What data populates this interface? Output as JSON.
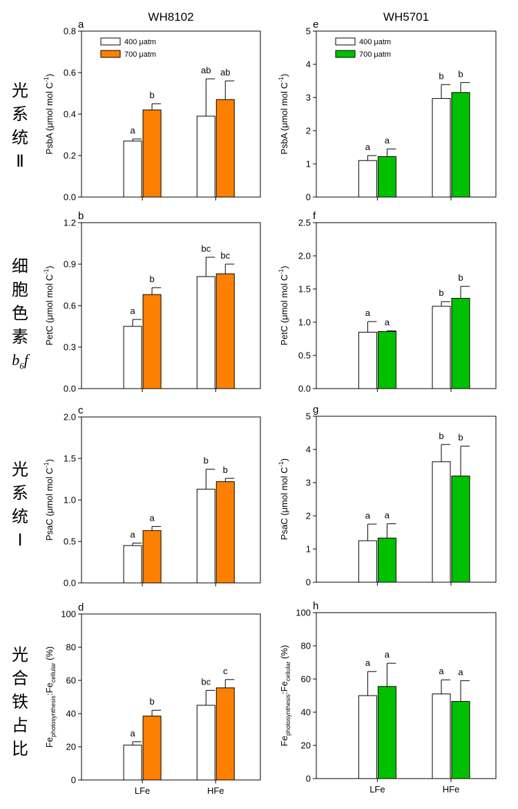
{
  "figure": {
    "column_titles": [
      "WH8102",
      "WH5701"
    ],
    "row_labels": [
      [
        "光",
        "系",
        "统",
        "Ⅱ"
      ],
      [
        "细",
        "胞",
        "色",
        "素",
        "b6f"
      ],
      [
        "光",
        "系",
        "统",
        "Ⅰ"
      ],
      [
        "光",
        "合",
        "铁",
        "占",
        "比"
      ]
    ],
    "row_label_b6f": {
      "base": "b",
      "sub": "6",
      "tail": "f"
    },
    "colors": {
      "white_bar": "#ffffff",
      "orange": "#ff8000",
      "green": "#00c000",
      "axis": "#000000"
    }
  },
  "chart_data": [
    {
      "panel": "a",
      "type": "bar",
      "column_title": "WH8102",
      "ylabel": {
        "base": "PsbA (μmol mol C",
        "sup": "-1",
        "tail": ")"
      },
      "ylim": [
        0,
        0.8
      ],
      "yticks": [
        "0.0",
        "0.2",
        "0.4",
        "0.6",
        "0.8"
      ],
      "categories": [
        "LFe",
        "HFe"
      ],
      "show_xlabels": false,
      "legend": {
        "entries": [
          "400 μatm",
          "700 μatm"
        ],
        "position": "top-left"
      },
      "series": [
        {
          "name": "400 μatm",
          "color": "#ffffff",
          "values": [
            0.27,
            0.39
          ],
          "errors": [
            0.01,
            0.18
          ],
          "letters": [
            "a",
            "ab"
          ]
        },
        {
          "name": "700 μatm",
          "color": "#ff8000",
          "values": [
            0.42,
            0.47
          ],
          "errors": [
            0.03,
            0.09
          ],
          "letters": [
            "b",
            "ab"
          ]
        }
      ]
    },
    {
      "panel": "e",
      "type": "bar",
      "column_title": "WH5701",
      "ylabel": {
        "base": "PsbA (μmol mol C",
        "sup": "-1",
        "tail": ")"
      },
      "ylim": [
        0,
        5
      ],
      "yticks": [
        "0",
        "1",
        "2",
        "3",
        "4",
        "5"
      ],
      "categories": [
        "LFe",
        "HFe"
      ],
      "show_xlabels": false,
      "legend": {
        "entries": [
          "400 μatm",
          "700 μatm"
        ],
        "position": "top-left"
      },
      "series": [
        {
          "name": "400 μatm",
          "color": "#ffffff",
          "values": [
            1.1,
            2.97
          ],
          "errors": [
            0.15,
            0.42
          ],
          "letters": [
            "a",
            "b"
          ]
        },
        {
          "name": "700 μatm",
          "color": "#00c000",
          "values": [
            1.22,
            3.15
          ],
          "errors": [
            0.23,
            0.3
          ],
          "letters": [
            "a",
            "b"
          ]
        }
      ]
    },
    {
      "panel": "b",
      "type": "bar",
      "ylabel": {
        "base": "PetC (μmol mol C",
        "sup": "-1",
        "tail": ")"
      },
      "ylim": [
        0,
        1.2
      ],
      "yticks": [
        "0.0",
        "0.3",
        "0.6",
        "0.9",
        "1.2"
      ],
      "categories": [
        "LFe",
        "HFe"
      ],
      "show_xlabels": false,
      "series": [
        {
          "name": "400 μatm",
          "color": "#ffffff",
          "values": [
            0.45,
            0.81
          ],
          "errors": [
            0.05,
            0.14
          ],
          "letters": [
            "a",
            "bc"
          ]
        },
        {
          "name": "700 μatm",
          "color": "#ff8000",
          "values": [
            0.68,
            0.83
          ],
          "errors": [
            0.05,
            0.07
          ],
          "letters": [
            "b",
            "bc"
          ]
        }
      ]
    },
    {
      "panel": "f",
      "type": "bar",
      "ylabel": {
        "base": "PetC (μmol mol C",
        "sup": "-1",
        "tail": ")"
      },
      "ylim": [
        0,
        2.5
      ],
      "yticks": [
        "0.0",
        "0.5",
        "1.0",
        "1.5",
        "2.0",
        "2.5"
      ],
      "categories": [
        "LFe",
        "HFe"
      ],
      "show_xlabels": false,
      "series": [
        {
          "name": "400 μatm",
          "color": "#ffffff",
          "values": [
            0.85,
            1.24
          ],
          "errors": [
            0.16,
            0.07
          ],
          "letters": [
            "a",
            "b"
          ]
        },
        {
          "name": "700 μatm",
          "color": "#00c000",
          "values": [
            0.86,
            1.36
          ],
          "errors": [
            0.01,
            0.18
          ],
          "letters": [
            "a",
            "b"
          ]
        }
      ]
    },
    {
      "panel": "c",
      "type": "bar",
      "ylabel": {
        "base": "PsaC (μmol mol C",
        "sup": "-1",
        "tail": ")"
      },
      "ylim": [
        0,
        2.0
      ],
      "yticks": [
        "0.0",
        "0.5",
        "1.0",
        "1.5",
        "2.0"
      ],
      "categories": [
        "LFe",
        "HFe"
      ],
      "show_xlabels": false,
      "series": [
        {
          "name": "400 μatm",
          "color": "#ffffff",
          "values": [
            0.45,
            1.13
          ],
          "errors": [
            0.03,
            0.24
          ],
          "letters": [
            "a",
            "b"
          ]
        },
        {
          "name": "700 μatm",
          "color": "#ff8000",
          "values": [
            0.63,
            1.22
          ],
          "errors": [
            0.05,
            0.04
          ],
          "letters": [
            "a",
            "b"
          ]
        }
      ]
    },
    {
      "panel": "g",
      "type": "bar",
      "ylabel": {
        "base": "PsaC (μmol mol C",
        "sup": "-1",
        "tail": ")"
      },
      "ylim": [
        0,
        5
      ],
      "yticks": [
        "0",
        "1",
        "2",
        "3",
        "4",
        "5"
      ],
      "categories": [
        "LFe",
        "HFe"
      ],
      "show_xlabels": false,
      "series": [
        {
          "name": "400 μatm",
          "color": "#ffffff",
          "values": [
            1.25,
            3.63
          ],
          "errors": [
            0.5,
            0.52
          ],
          "letters": [
            "a",
            "b"
          ]
        },
        {
          "name": "700 μatm",
          "color": "#00c000",
          "values": [
            1.33,
            3.2
          ],
          "errors": [
            0.43,
            0.9
          ],
          "letters": [
            "a",
            "b"
          ]
        }
      ]
    },
    {
      "panel": "d",
      "type": "bar",
      "ylabel": {
        "base": "Fe",
        "sub1": "photosynthesis",
        "mid": ":Fe",
        "sub2": "cellular",
        "tail": " (%)"
      },
      "ylim": [
        0,
        100
      ],
      "yticks": [
        "0",
        "20",
        "40",
        "60",
        "80",
        "100"
      ],
      "categories": [
        "LFe",
        "HFe"
      ],
      "show_xlabels": true,
      "series": [
        {
          "name": "400 μatm",
          "color": "#ffffff",
          "values": [
            21,
            45
          ],
          "errors": [
            2,
            9
          ],
          "letters": [
            "a",
            "bc"
          ]
        },
        {
          "name": "700 μatm",
          "color": "#ff8000",
          "values": [
            38.5,
            55.5
          ],
          "errors": [
            3.5,
            5
          ],
          "letters": [
            "b",
            "c"
          ]
        }
      ]
    },
    {
      "panel": "h",
      "type": "bar",
      "ylabel": {
        "base": "Fe",
        "sub1": "photosynthesis",
        "mid": ":Fe",
        "sub2": "cellular",
        "tail": " (%)"
      },
      "ylim": [
        0,
        100
      ],
      "yticks": [
        "0",
        "20",
        "40",
        "60",
        "80",
        "100"
      ],
      "categories": [
        "LFe",
        "HFe"
      ],
      "show_xlabels": true,
      "series": [
        {
          "name": "400 μatm",
          "color": "#ffffff",
          "values": [
            50,
            51
          ],
          "errors": [
            14.5,
            8.5
          ],
          "letters": [
            "a",
            "a"
          ]
        },
        {
          "name": "700 μatm",
          "color": "#00c000",
          "values": [
            55.5,
            46.5
          ],
          "errors": [
            14,
            12.5
          ],
          "letters": [
            "a",
            "a"
          ]
        }
      ]
    }
  ]
}
